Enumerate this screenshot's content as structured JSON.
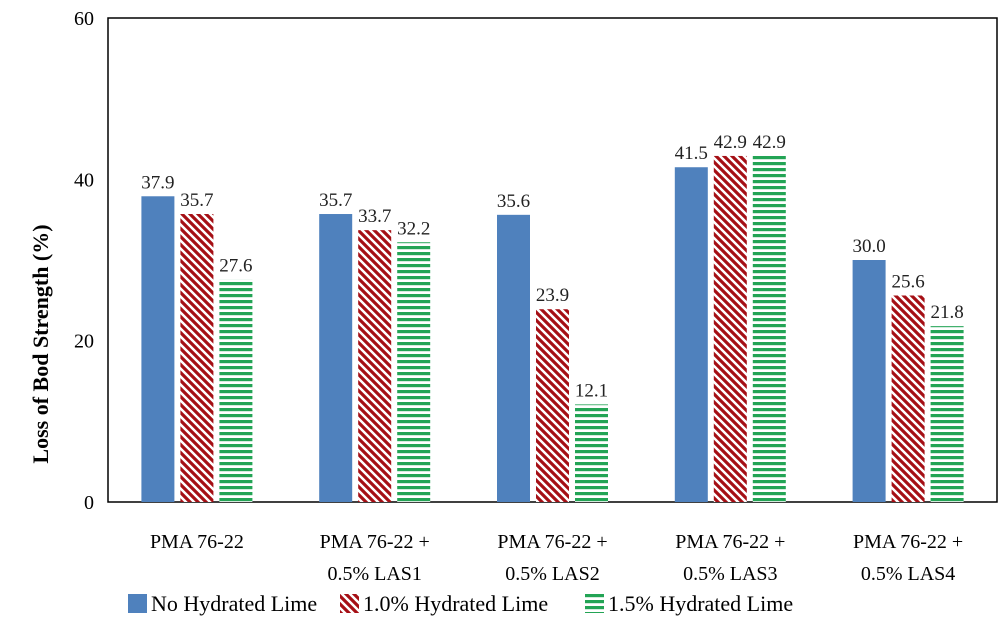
{
  "chart_data": {
    "type": "bar",
    "title": "",
    "xlabel": "",
    "ylabel": "Loss of Bod Strength (%)",
    "ylim": [
      0,
      60
    ],
    "yticks": [
      0,
      20,
      40,
      60
    ],
    "grid": false,
    "legend_position": "bottom",
    "categories": [
      [
        "PMA 76-22"
      ],
      [
        "PMA 76-22 +",
        "0.5% LAS1"
      ],
      [
        "PMA 76-22 +",
        "0.5% LAS2"
      ],
      [
        "PMA 76-22 +",
        "0.5% LAS3"
      ],
      [
        "PMA 76-22 +",
        "0.5% LAS4"
      ]
    ],
    "series": [
      {
        "name": "No Hydrated Lime",
        "values": [
          37.9,
          35.7,
          35.6,
          41.5,
          30.0
        ],
        "labels": [
          "37.9",
          "35.7",
          "35.6",
          "41.5",
          "30.0"
        ],
        "color": "#4f81bd",
        "pattern": "solid"
      },
      {
        "name": "1.0% Hydrated Lime",
        "values": [
          35.7,
          33.7,
          23.9,
          42.9,
          25.6
        ],
        "labels": [
          "35.7",
          "33.7",
          "23.9",
          "42.9",
          "25.6"
        ],
        "color": "#a50f15",
        "pattern": "diagonal-stripes"
      },
      {
        "name": "1.5% Hydrated Lime",
        "values": [
          27.6,
          32.2,
          12.1,
          42.9,
          21.8
        ],
        "labels": [
          "27.6",
          "32.2",
          "12.1",
          "42.9",
          "21.8"
        ],
        "color": "#23a455",
        "pattern": "horizontal-stripes"
      }
    ]
  }
}
